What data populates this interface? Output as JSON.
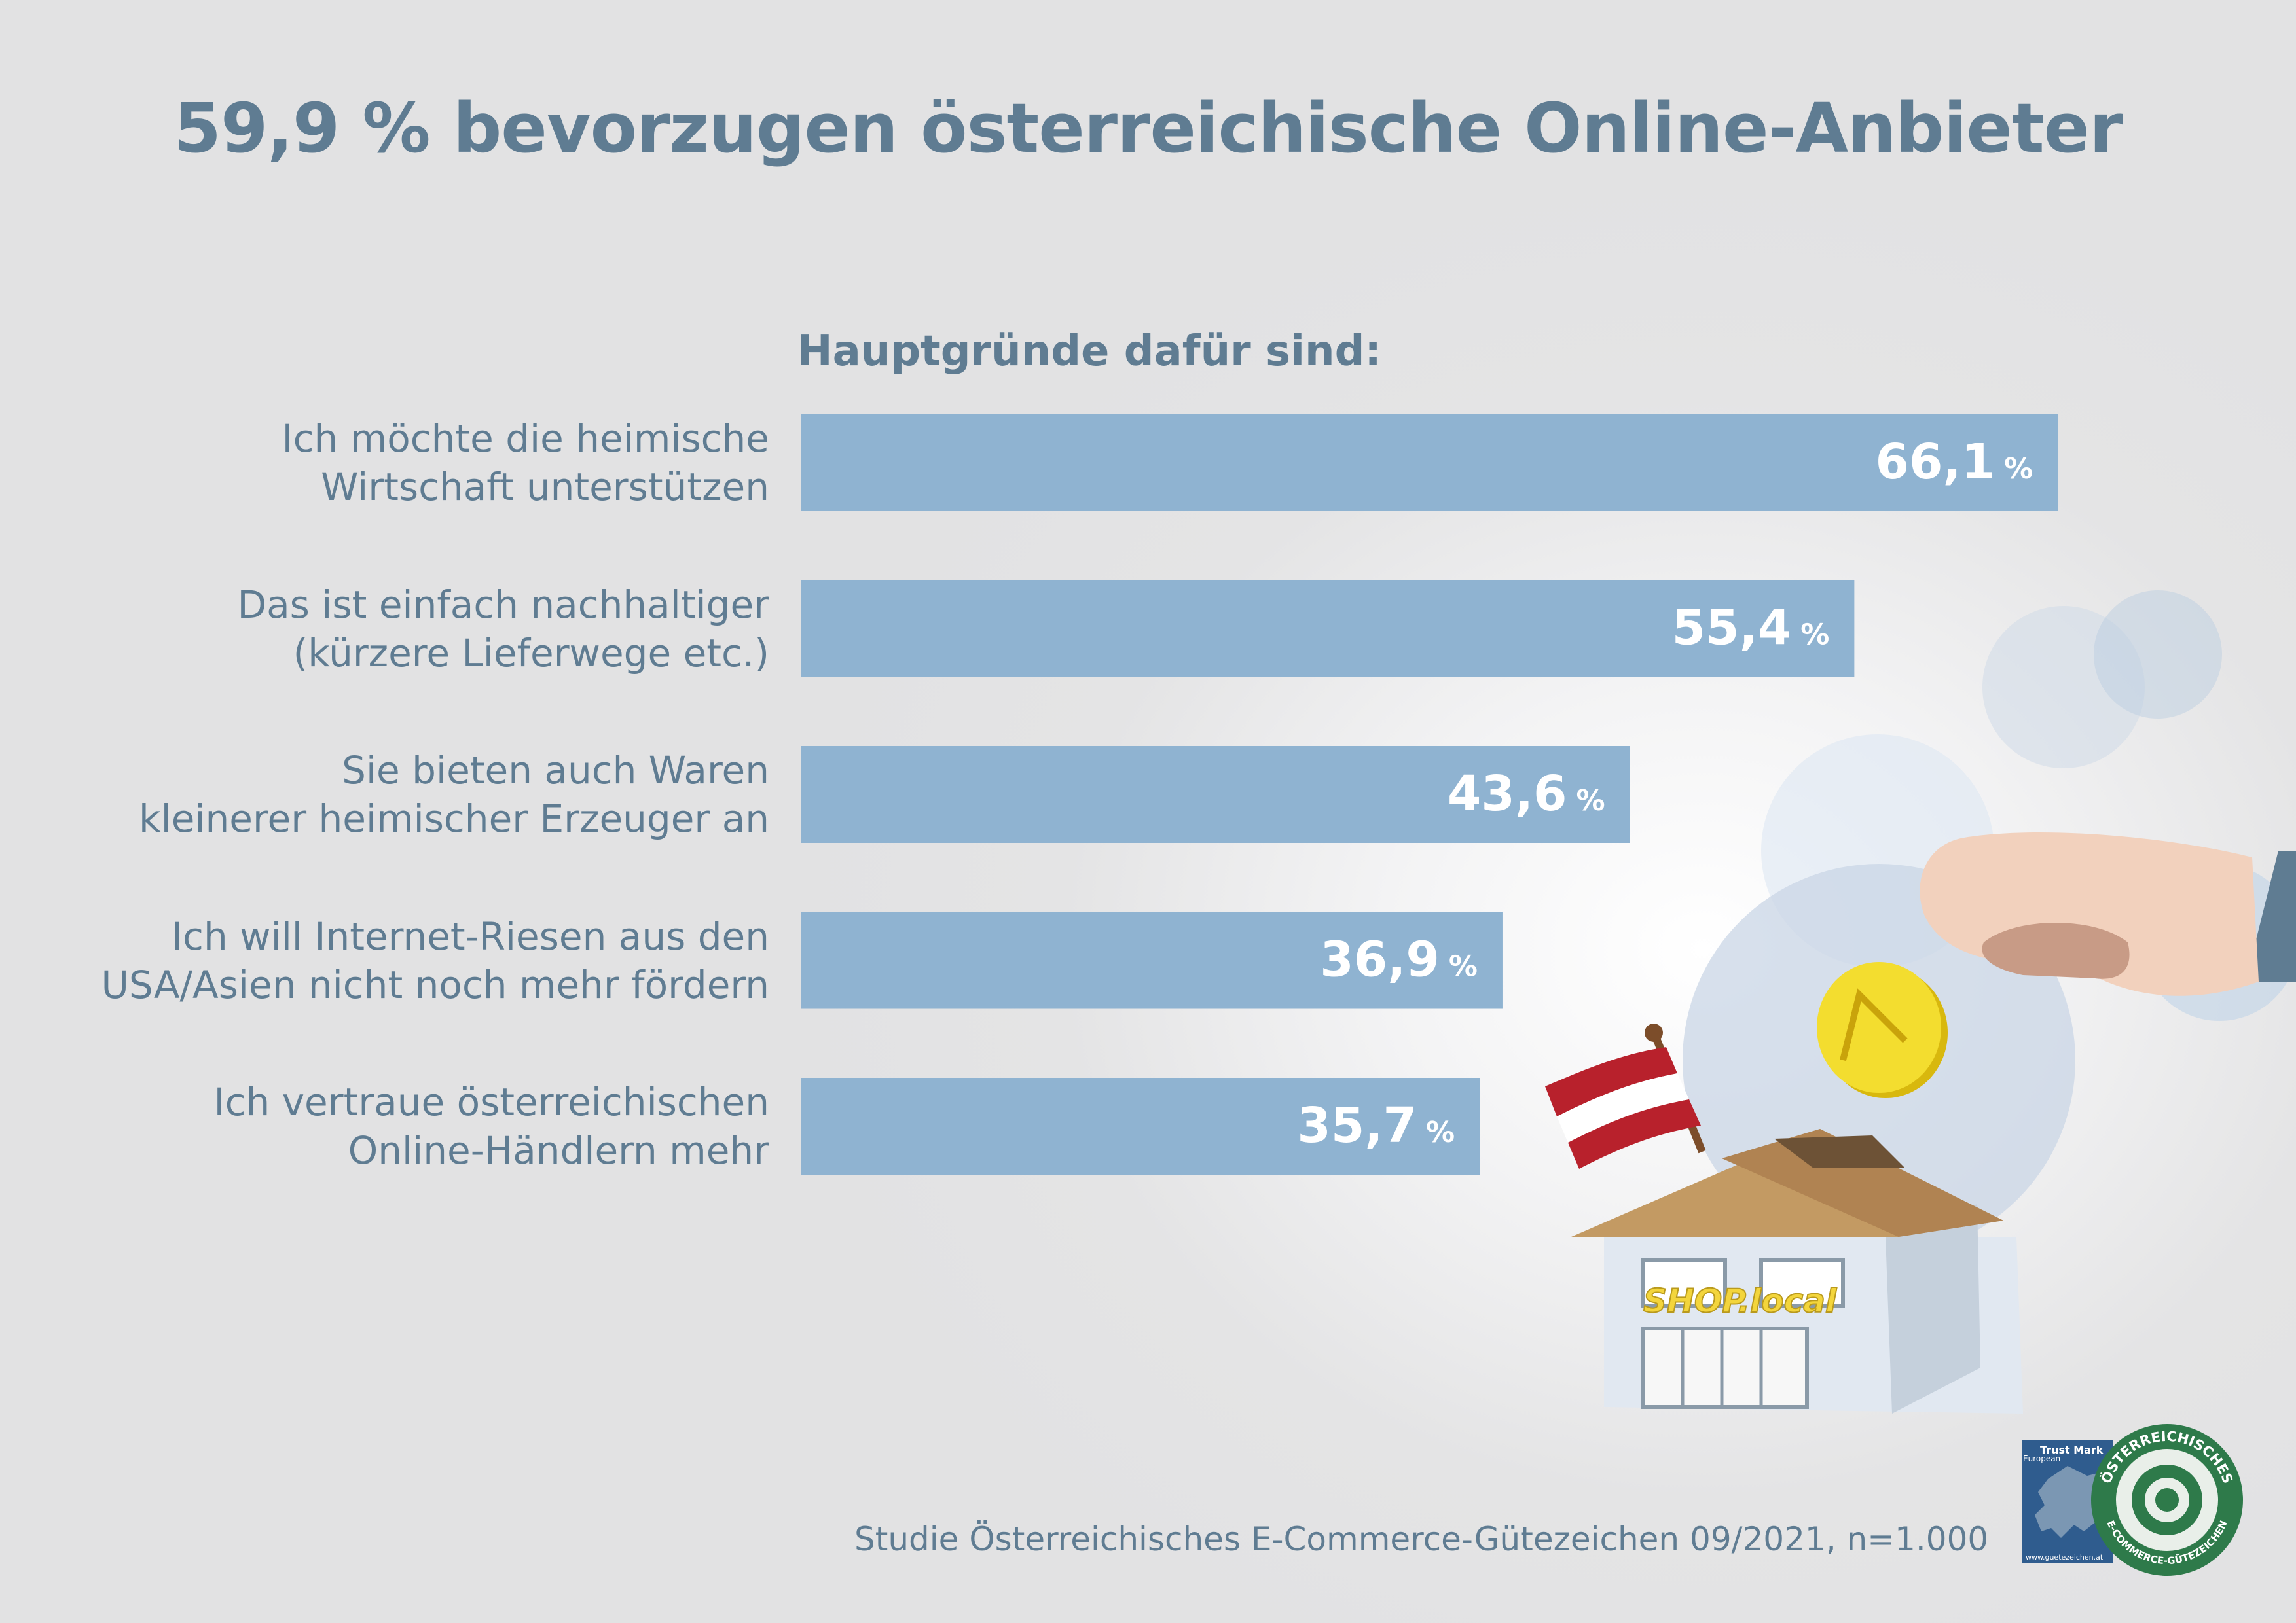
{
  "title": "59,9 % bevorzugen österreichische Online-Anbieter",
  "source": "Studie Österreichisches E-Commerce-Gütezeichen 09/2021, n=1.000",
  "colors": {
    "background": "#e2e2e3",
    "text": "#5f7c92",
    "bar": "#8fb3d1",
    "bar_label": "#ffffff"
  },
  "chart_data": {
    "type": "bar",
    "orientation": "horizontal",
    "title": "Hauptgründe dafür sind:",
    "categories": [
      [
        "Ich möchte die heimische",
        "Wirtschaft unterstützen"
      ],
      [
        "Das ist einfach nachhaltiger",
        "(kürzere Lieferwege etc.)"
      ],
      [
        "Sie bieten auch Waren",
        "kleinerer heimischer Erzeuger an"
      ],
      [
        "Ich will Internet-Riesen aus den",
        "USA/Asien nicht noch mehr fördern"
      ],
      [
        "Ich vertraue österreichischen",
        "Online-Händlern mehr"
      ]
    ],
    "values": [
      66.1,
      55.4,
      43.6,
      36.9,
      35.7
    ],
    "value_labels": [
      "66,1",
      "55,4",
      "43,6",
      "36,9",
      "35,7"
    ],
    "unit": "%",
    "grid": false,
    "legend": "none"
  },
  "illustration": {
    "shop_sign": "SHOP.local",
    "icons": [
      "austrian-flag-icon",
      "piggy-bank-house-icon",
      "coin-icon",
      "hand-icon"
    ]
  },
  "logo": {
    "trust_mark_title": "Trust Mark",
    "trust_mark_sub": "European",
    "trust_mark_url": "www.guetezeichen.at",
    "seal_top": "ÖSTERREICHISCHES",
    "seal_bottom": "E-COMMERCE-GÜTEZEICHEN"
  }
}
